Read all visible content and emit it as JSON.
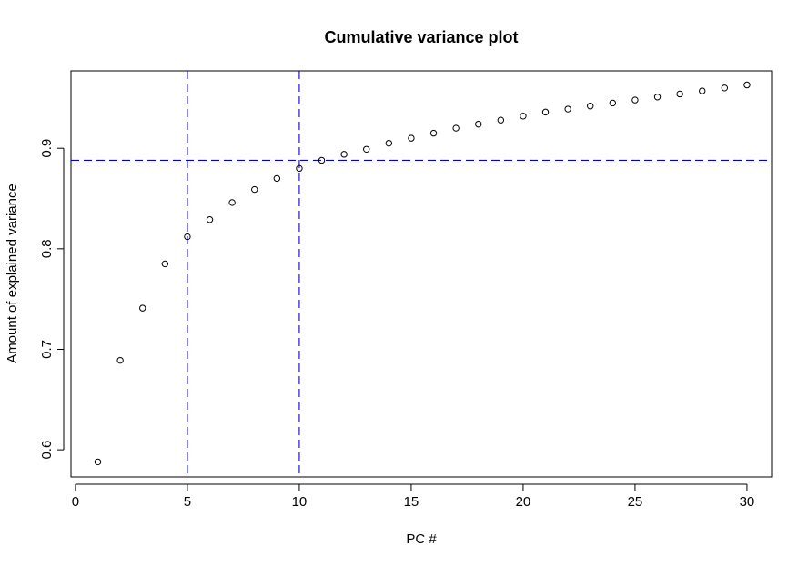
{
  "chart_data": {
    "type": "scatter",
    "title": "Cumulative variance plot",
    "xlabel": "PC #",
    "ylabel": "Amount of explained variance",
    "xlim": [
      -0.2,
      31.1
    ],
    "ylim": [
      0.573,
      0.977
    ],
    "xticks": [
      0,
      5,
      10,
      15,
      20,
      25,
      30
    ],
    "yticks": [
      0.6,
      0.7,
      0.8,
      0.9
    ],
    "xtick_labels": [
      "0",
      "5",
      "10",
      "15",
      "20",
      "25",
      "30"
    ],
    "ytick_labels": [
      "0.6",
      "0.7",
      "0.8",
      "0.9"
    ],
    "grid": false,
    "marker": "open-circle",
    "point_color": "#000000",
    "x": [
      1,
      2,
      3,
      4,
      5,
      6,
      7,
      8,
      9,
      10,
      11,
      12,
      13,
      14,
      15,
      16,
      17,
      18,
      19,
      20,
      21,
      22,
      23,
      24,
      25,
      26,
      27,
      28,
      29,
      30
    ],
    "y": [
      0.588,
      0.689,
      0.741,
      0.785,
      0.812,
      0.829,
      0.846,
      0.859,
      0.87,
      0.88,
      0.888,
      0.894,
      0.899,
      0.905,
      0.91,
      0.915,
      0.92,
      0.924,
      0.928,
      0.932,
      0.936,
      0.939,
      0.942,
      0.945,
      0.948,
      0.951,
      0.954,
      0.957,
      0.96,
      0.963
    ],
    "reference_lines": {
      "color": "#0000CD",
      "style": "dashed",
      "vertical": [
        5,
        10
      ],
      "horizontal": [
        0.888
      ]
    }
  }
}
